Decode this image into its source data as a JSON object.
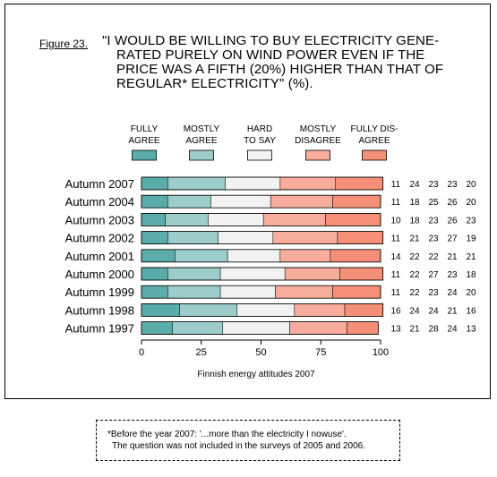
{
  "figure": {
    "label": "Figure 23.",
    "title_lines": [
      "\"I WOULD BE WILLING TO BUY ELECTRICITY GENE-",
      "RATED PURELY ON WIND POWER EVEN IF THE",
      "PRICE WAS A FIFTH (20%) HIGHER THAN THAT OF",
      "REGULAR* ELECTRICITY\"  (%)."
    ],
    "source": "Finnish energy attitudes 2007"
  },
  "chart_data": {
    "type": "bar",
    "stacked": true,
    "orientation": "horizontal",
    "title": "\"I WOULD BE WILLING TO BUY ELECTRICITY GENERATED PURELY ON WIND POWER EVEN IF THE PRICE WAS A FIFTH (20%) HIGHER THAN THAT OF REGULAR* ELECTRICITY\" (%).",
    "xlabel": "",
    "ylabel": "",
    "xlim": [
      0,
      100
    ],
    "xticks": [
      0,
      25,
      50,
      75,
      100
    ],
    "grid": false,
    "legend_position": "top",
    "categories": [
      "Autumn 2007",
      "Autumn 2004",
      "Autumn 2003",
      "Autumn 2002",
      "Autumn 2001",
      "Autumn 2000",
      "Autumn 1999",
      "Autumn 1998",
      "Autumn 1997"
    ],
    "series": [
      {
        "name": "FULLY AGREE",
        "legend_lines": [
          "FULLY",
          "AGREE"
        ],
        "color": "#5aacaa",
        "values": [
          11,
          11,
          10,
          11,
          14,
          11,
          11,
          16,
          13
        ]
      },
      {
        "name": "MOSTLY AGREE",
        "legend_lines": [
          "MOSTLY",
          "AGREE"
        ],
        "color": "#9ccdcb",
        "values": [
          24,
          18,
          18,
          21,
          22,
          22,
          22,
          24,
          21
        ]
      },
      {
        "name": "HARD TO SAY",
        "legend_lines": [
          "HARD",
          "TO SAY"
        ],
        "color": "#f2f2f2",
        "values": [
          23,
          25,
          23,
          23,
          22,
          27,
          23,
          24,
          28
        ]
      },
      {
        "name": "MOSTLY DISAGREE",
        "legend_lines": [
          "MOSTLY",
          "DISAGREE"
        ],
        "color": "#f8ad9c",
        "values": [
          23,
          26,
          26,
          27,
          21,
          23,
          24,
          21,
          24
        ]
      },
      {
        "name": "FULLY DISAGREE",
        "legend_lines": [
          "FULLY DIS-",
          "AGREE"
        ],
        "color": "#f58f77",
        "values": [
          20,
          20,
          23,
          19,
          21,
          18,
          20,
          16,
          13
        ]
      }
    ]
  },
  "note": {
    "line1": "*Before the year 2007: '...more than the electricity I nowuse'.",
    "line2": "The question was not included in the surveys of 2005 and 2006."
  }
}
